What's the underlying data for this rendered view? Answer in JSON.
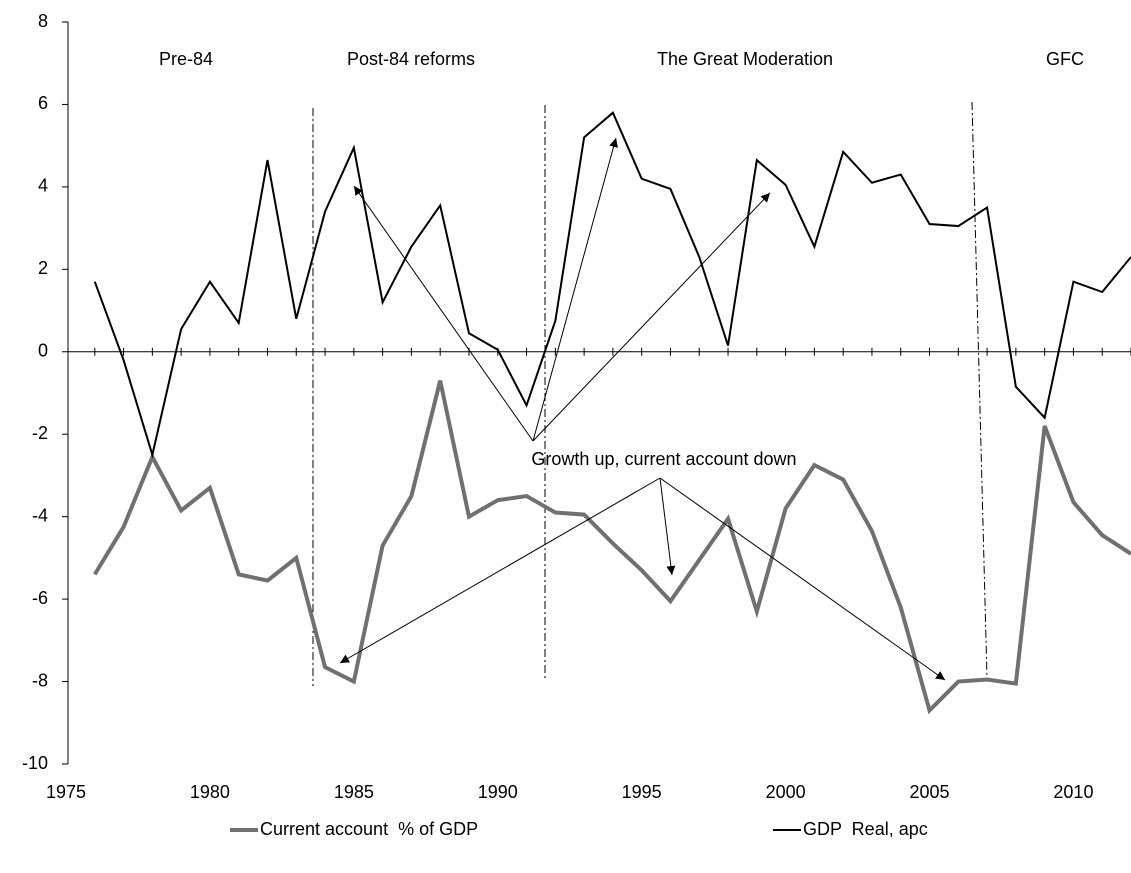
{
  "chart_data": {
    "type": "line",
    "x": [
      1976,
      1977,
      1978,
      1979,
      1980,
      1981,
      1982,
      1983,
      1984,
      1985,
      1986,
      1987,
      1988,
      1989,
      1990,
      1991,
      1992,
      1993,
      1994,
      1995,
      1996,
      1997,
      1998,
      1999,
      2000,
      2001,
      2002,
      2003,
      2004,
      2005,
      2006,
      2007,
      2008,
      2009,
      2010,
      2011,
      2012
    ],
    "series": [
      {
        "name": "Current account  % of GDP",
        "color": "#707070",
        "values": [
          -5.4,
          -4.25,
          -2.55,
          -3.85,
          -3.3,
          -5.4,
          -5.55,
          -5.0,
          -7.65,
          -8.0,
          -4.7,
          -3.5,
          -0.7,
          -4.0,
          -3.6,
          -3.5,
          -3.9,
          -3.95,
          -4.65,
          -5.3,
          -6.05,
          -5.05,
          -4.05,
          -6.3,
          -3.8,
          -2.75,
          -3.1,
          -4.35,
          -6.2,
          -8.7,
          -8.0,
          -7.95,
          -8.05,
          -1.8,
          -3.65,
          -4.45,
          -4.9
        ]
      },
      {
        "name": "GDP  Real, apc",
        "color": "#000000",
        "values": [
          1.7,
          -0.2,
          -2.5,
          0.55,
          1.7,
          0.7,
          4.65,
          0.8,
          3.4,
          4.95,
          1.2,
          2.55,
          3.55,
          0.45,
          0.05,
          -1.3,
          0.75,
          5.2,
          5.8,
          4.2,
          3.95,
          2.3,
          0.15,
          4.65,
          4.05,
          2.55,
          4.85,
          4.1,
          4.3,
          3.1,
          3.05,
          3.5,
          -0.85,
          -1.6,
          1.7,
          1.45,
          2.3
        ]
      }
    ],
    "xlim": [
      1975,
      2012
    ],
    "xticks": [
      1975,
      1980,
      1985,
      1990,
      1995,
      2000,
      2005,
      2010
    ],
    "ylim": [
      -10,
      8
    ],
    "yticks": [
      -10,
      -8,
      -6,
      -4,
      -2,
      0,
      2,
      4,
      6,
      8
    ],
    "annotations": [
      "Pre-84",
      "Post-84 reforms",
      "The Great Moderation",
      "GFC",
      "Growth up, current account down"
    ]
  }
}
